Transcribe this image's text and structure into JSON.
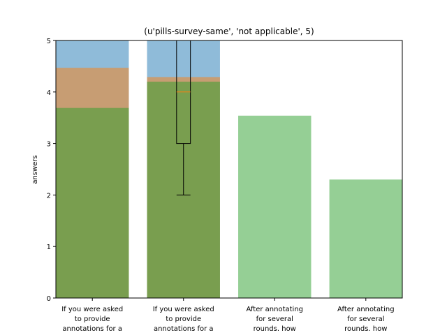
{
  "chart_data": {
    "type": "bar",
    "title": "(u'pills-survey-same', 'not applicable', 5)",
    "xlabel": "",
    "ylabel": "answers",
    "ylim": [
      0,
      5
    ],
    "yticks": [
      "0",
      "1",
      "2",
      "3",
      "4",
      "5"
    ],
    "grid": false,
    "categories": [
      [
        "If you were asked",
        "to provide",
        "annotations for a"
      ],
      [
        "If you were asked",
        "to provide",
        "annotations for a"
      ],
      [
        "After annotating",
        "for several",
        "rounds. how"
      ],
      [
        "After annotating",
        "for several",
        "rounds. how"
      ]
    ],
    "series": [
      {
        "color": "#1f77b4",
        "opacity": 0.5,
        "values": [
          5.0,
          5.0,
          null,
          null
        ]
      },
      {
        "color": "#ff7f0e",
        "opacity": 0.5,
        "values": [
          4.47,
          4.29,
          null,
          null
        ]
      },
      {
        "color": "#2ca02c",
        "opacity": 0.5,
        "values": [
          3.69,
          4.2,
          3.54,
          2.3
        ]
      }
    ],
    "boxplot": {
      "category_index": 1,
      "whisker_low": 2,
      "q1": 3,
      "median": 4,
      "q3": 5,
      "whisker_high": 5,
      "median_color": "#ff7f0e"
    }
  }
}
